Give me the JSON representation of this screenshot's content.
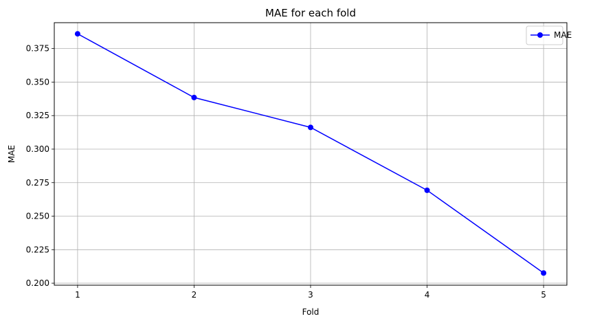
{
  "chart_data": {
    "type": "line",
    "title": "MAE for each fold",
    "xlabel": "Fold",
    "ylabel": "MAE",
    "categories": [
      "1",
      "2",
      "3",
      "4",
      "5"
    ],
    "x": [
      1,
      2,
      3,
      4,
      5
    ],
    "series": [
      {
        "name": "MAE",
        "values": [
          0.386,
          0.3385,
          0.3162,
          0.2693,
          0.2076
        ],
        "color": "#0000ff",
        "marker": "circle"
      }
    ],
    "xlim": [
      0.8,
      5.2
    ],
    "ylim": [
      0.1985,
      0.3943
    ],
    "yticks": [
      0.2,
      0.225,
      0.25,
      0.275,
      0.3,
      0.325,
      0.35,
      0.375
    ],
    "ytick_labels": [
      "0.200",
      "0.225",
      "0.250",
      "0.275",
      "0.300",
      "0.325",
      "0.350",
      "0.375"
    ],
    "grid": true,
    "grid_color": "#b0b0b0",
    "legend_position": "top-right"
  }
}
